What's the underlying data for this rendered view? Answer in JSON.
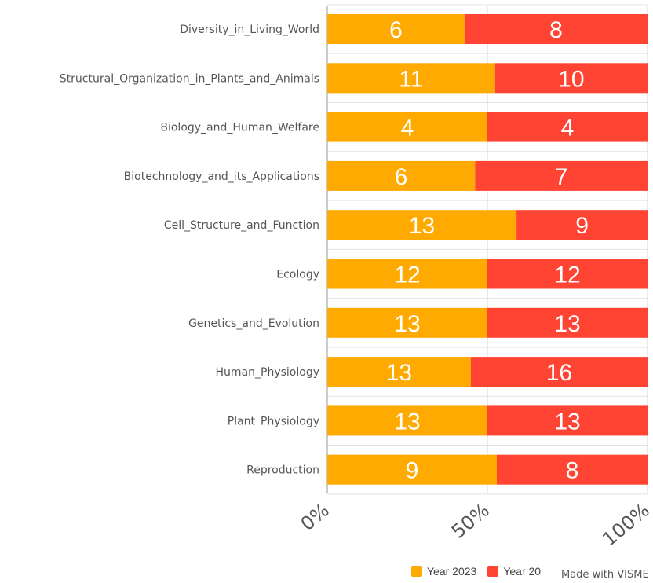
{
  "chart_data": {
    "type": "bar",
    "orientation": "horizontal",
    "stacking": "percent",
    "categories": [
      "Diversity_in_Living_World",
      "Structural_Organization_in_Plants_and_Animals",
      "Biology_and_Human_Welfare",
      "Biotechnology_and_its_Applications",
      "Cell_Structure_and_Function",
      "Ecology",
      "Genetics_and_Evolution",
      "Human_Physiology",
      "Plant_Physiology",
      "Reproduction"
    ],
    "series": [
      {
        "name": "Year 2023",
        "color": "#FFAA00",
        "values": [
          6,
          11,
          4,
          6,
          13,
          12,
          13,
          13,
          13,
          9
        ]
      },
      {
        "name": "Year 20",
        "color": "#FF4433",
        "values": [
          8,
          10,
          4,
          7,
          9,
          12,
          13,
          16,
          13,
          8
        ]
      }
    ],
    "x_ticks": [
      "0%",
      "50%",
      "100%"
    ],
    "xlim": [
      0,
      100
    ],
    "grid": true,
    "legend_position": "bottom"
  },
  "watermark": "Made with VISME"
}
